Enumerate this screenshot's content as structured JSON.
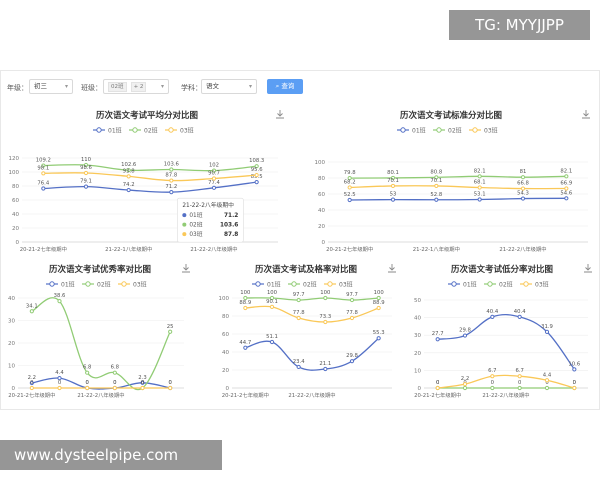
{
  "watermarks": {
    "top": "TG: MYYJJPP",
    "bottom": "www.dysteelpipe.com"
  },
  "filters": {
    "grade_label": "年级：",
    "grade_value": "初三",
    "class_label": "班级：",
    "class_tag1": "02班",
    "class_tag2": "+ 2",
    "subject_label": "学科：",
    "subject_value": "语文",
    "query_button": "查询"
  },
  "colors": {
    "s1": "#5470c6",
    "s2": "#91cc75",
    "s3": "#fac858"
  },
  "legend": [
    "01班",
    "02班",
    "03班"
  ],
  "tooltip": {
    "title": "21-22-2八年级期中",
    "rows": [
      {
        "name": "01班",
        "value": "71.2"
      },
      {
        "name": "02班",
        "value": "103.6"
      },
      {
        "name": "03班",
        "value": "87.8"
      }
    ]
  },
  "chart_data": [
    {
      "type": "line",
      "title": "历次语文考试平均分对比图",
      "xticks": [
        "20-21-2七年级期中",
        "21-22-1八年级期中",
        "21-22-2八年级期中"
      ],
      "yticks": [
        "0",
        "20",
        "40",
        "60",
        "80",
        "100",
        "120"
      ],
      "ylim": [
        0,
        120
      ],
      "series": [
        {
          "name": "01班",
          "values": [
            76.4,
            79.1,
            74.2,
            71.2,
            77.4,
            85.5
          ]
        },
        {
          "name": "02班",
          "values": [
            109.2,
            110,
            102.6,
            103.6,
            102,
            108.3
          ]
        },
        {
          "name": "03班",
          "values": [
            98.1,
            98.6,
            93.8,
            87.8,
            90.7,
            95.6
          ]
        }
      ]
    },
    {
      "type": "line",
      "title": "历次语文考试标准分对比图",
      "xticks": [
        "20-21-2七年级期中",
        "21-22-1八年级期中",
        "21-22-2八年级期中"
      ],
      "yticks": [
        "0",
        "20",
        "40",
        "60",
        "80",
        "100"
      ],
      "ylim": [
        0,
        100
      ],
      "series": [
        {
          "name": "01班",
          "values": [
            52.5,
            53,
            52.8,
            53.1,
            54.3,
            54.6
          ]
        },
        {
          "name": "02班",
          "values": [
            79.8,
            80.1,
            80.8,
            82.1,
            81,
            82.1
          ]
        },
        {
          "name": "03班",
          "values": [
            68.2,
            70.1,
            70.1,
            68.1,
            66.8,
            66.9
          ]
        }
      ]
    },
    {
      "type": "line",
      "title": "历次语文考试优秀率对比图",
      "xticks": [
        "20-21-2七年级期中",
        "21-22-2八年级期中"
      ],
      "yticks": [
        "0",
        "10",
        "20",
        "30",
        "40"
      ],
      "ylim": [
        0,
        40
      ],
      "series": [
        {
          "name": "01班",
          "values": [
            2.2,
            4.4,
            0,
            0,
            2.3,
            0
          ]
        },
        {
          "name": "02班",
          "values": [
            34.1,
            38.6,
            6.8,
            6.8,
            0,
            25
          ]
        },
        {
          "name": "03班",
          "values": [
            0,
            0,
            0,
            0,
            0,
            0
          ]
        }
      ]
    },
    {
      "type": "line",
      "title": "历次语文考试及格率对比图",
      "xticks": [
        "20-21-2七年级期中",
        "21-22-2八年级期中"
      ],
      "yticks": [
        "0",
        "20",
        "40",
        "60",
        "80",
        "100"
      ],
      "ylim": [
        0,
        100
      ],
      "series": [
        {
          "name": "01班",
          "values": [
            44.7,
            51.1,
            23.4,
            21.1,
            29.8,
            55.3
          ]
        },
        {
          "name": "02班",
          "values": [
            100,
            100,
            97.7,
            100,
            97.7,
            100
          ]
        },
        {
          "name": "03班",
          "values": [
            88.9,
            90.1,
            77.8,
            73.3,
            77.8,
            88.9
          ]
        }
      ]
    },
    {
      "type": "line",
      "title": "历次语文考试低分率对比图",
      "xticks": [
        "20-21-2七年级期中",
        "21-22-2八年级期中"
      ],
      "yticks": [
        "0",
        "10",
        "20",
        "30",
        "40",
        "50"
      ],
      "ylim": [
        0,
        50
      ],
      "series": [
        {
          "name": "01班",
          "values": [
            27.7,
            29.8,
            40.4,
            40.4,
            31.9,
            10.6
          ]
        },
        {
          "name": "02班",
          "values": [
            0,
            0,
            0,
            0,
            0,
            0
          ]
        },
        {
          "name": "03班",
          "values": [
            0,
            2.2,
            6.7,
            6.7,
            4.4,
            0
          ]
        }
      ]
    }
  ]
}
